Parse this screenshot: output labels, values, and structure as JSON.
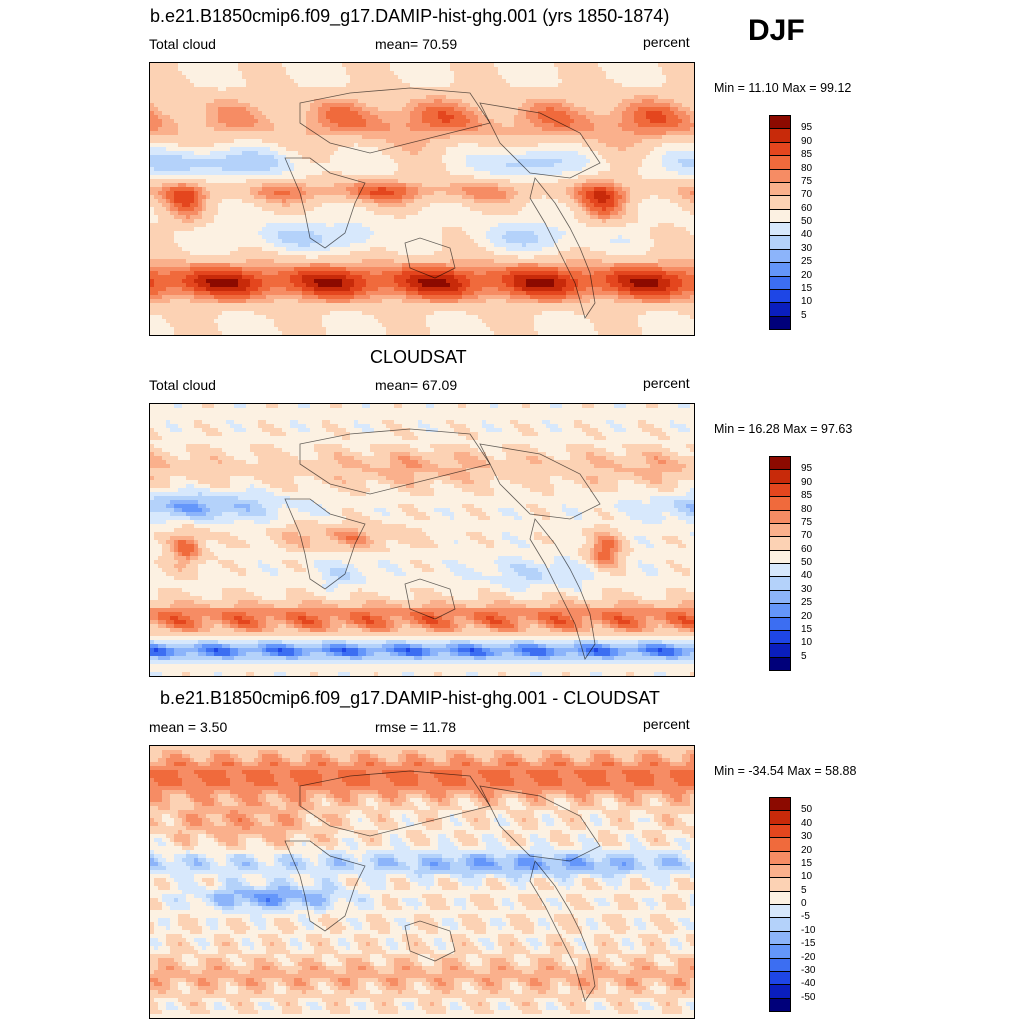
{
  "season": "DJF",
  "palettes": {
    "abs": [
      "#00007a",
      "#0a1ebe",
      "#1e46e6",
      "#3c6ef2",
      "#6496fa",
      "#8cb4fa",
      "#b4d2fa",
      "#d7e8fc",
      "#fcf1e2",
      "#fcd2b4",
      "#fab08c",
      "#f68c64",
      "#f06a3c",
      "#e4461e",
      "#c82a0a",
      "#8c0a00"
    ],
    "diff": [
      "#00007a",
      "#0a1ebe",
      "#1e46e6",
      "#3c6ef2",
      "#6496fa",
      "#8cb4fa",
      "#b4d2fa",
      "#d7e8fc",
      "#fcf1e2",
      "#fcd2b4",
      "#fab08c",
      "#f68c64",
      "#f06a3c",
      "#e4461e",
      "#c82a0a",
      "#8c0a00"
    ]
  },
  "panels": [
    {
      "title": "b.e21.B1850cmip6.f09_g17.DAMIP-hist-ghg.001 (yrs 1850-1874)",
      "left_label": "Total cloud",
      "center_label": "mean=  70.59",
      "right_label": "percent",
      "minmax": "Min =  11.10 Max =  99.12",
      "field_type": "model",
      "colorbar_labels": [
        "95",
        "90",
        "85",
        "80",
        "75",
        "70",
        "60",
        "50",
        "40",
        "30",
        "25",
        "20",
        "15",
        "10",
        "5"
      ]
    },
    {
      "title": "CLOUDSAT",
      "left_label": "Total cloud",
      "center_label": "mean=  67.09",
      "right_label": "percent",
      "minmax": "Min =  16.28 Max =  97.63",
      "field_type": "obs",
      "colorbar_labels": [
        "95",
        "90",
        "85",
        "80",
        "75",
        "70",
        "60",
        "50",
        "40",
        "30",
        "25",
        "20",
        "15",
        "10",
        "5"
      ]
    },
    {
      "title": "b.e21.B1850cmip6.f09_g17.DAMIP-hist-ghg.001 - CLOUDSAT",
      "left_label": "mean =   3.50",
      "center_label": "rmse =  11.78",
      "right_label": "percent",
      "minmax": "Min = -34.54 Max =  58.88",
      "field_type": "diff",
      "colorbar_labels": [
        "50",
        "40",
        "30",
        "20",
        "15",
        "10",
        "5",
        "0",
        "-5",
        "-10",
        "-15",
        "-20",
        "-30",
        "-40",
        "-50"
      ]
    }
  ]
}
